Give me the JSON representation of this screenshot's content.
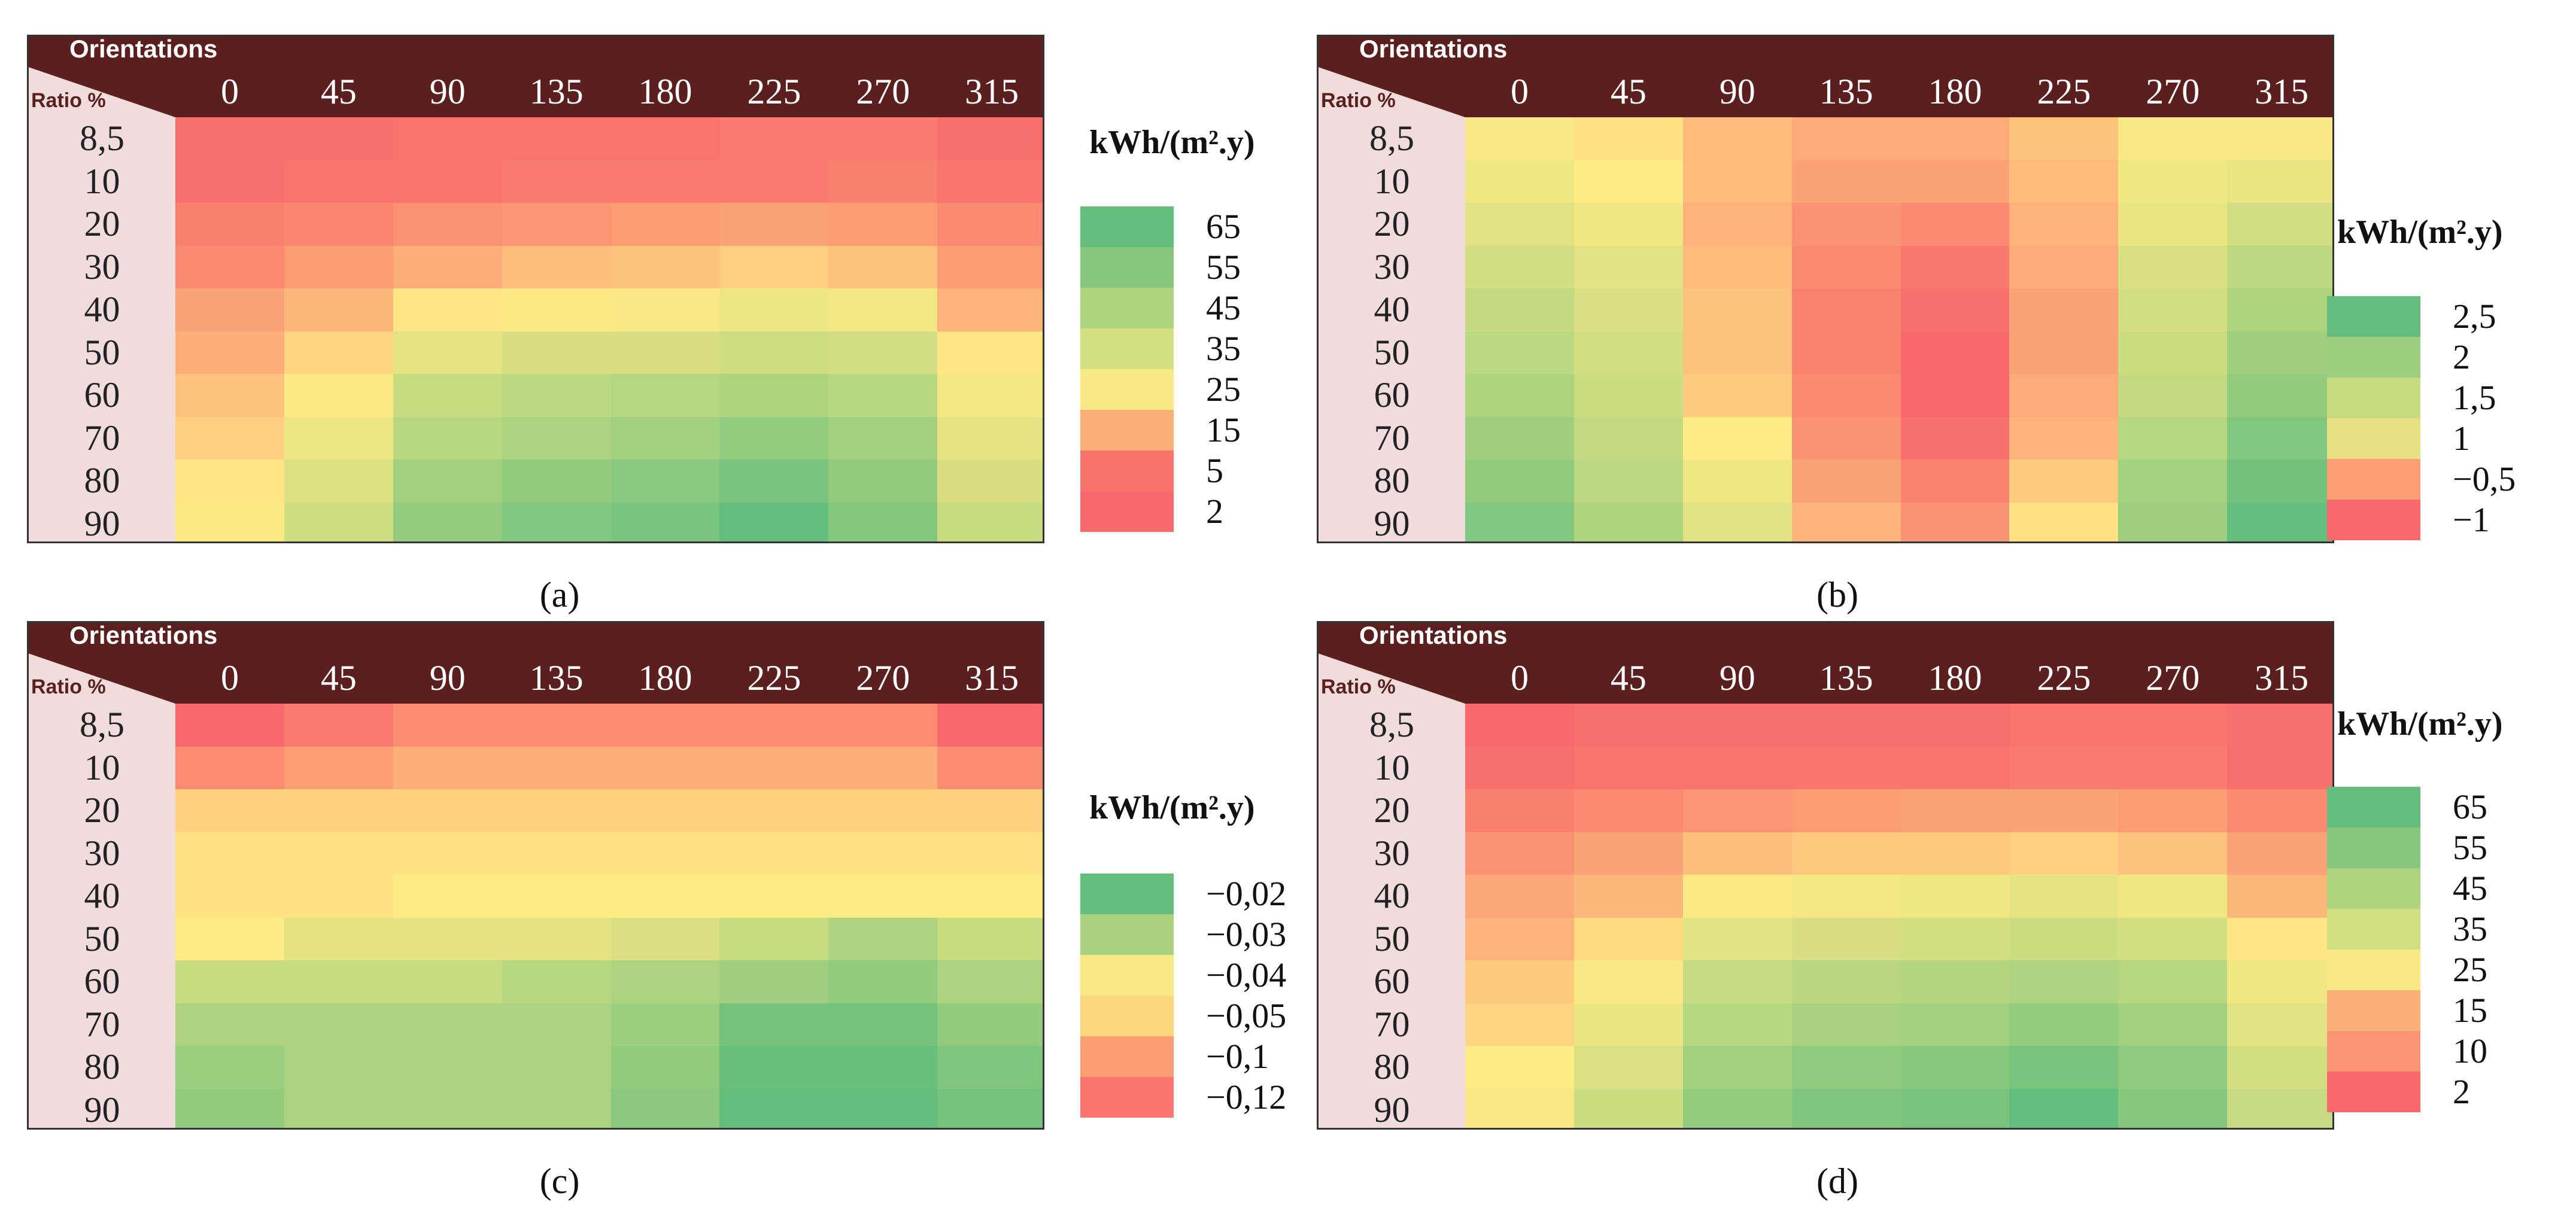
{
  "panels": [
    {
      "id": "a",
      "caption": "(a)",
      "orientations_label": "Orientations",
      "ratio_label": "Ratio %",
      "unit": "kWh/(m².y)",
      "columns": [
        "0",
        "45",
        "90",
        "135",
        "180",
        "225",
        "270",
        "315"
      ],
      "rows": [
        "8,5",
        "10",
        "20",
        "30",
        "40",
        "50",
        "60",
        "70",
        "80",
        "90"
      ],
      "legend": {
        "labels": [
          "65",
          "55",
          "45",
          "35",
          "25",
          "15",
          "5",
          "2"
        ],
        "colors": [
          "#63be7b",
          "#85c87d",
          "#acd47e",
          "#d4df81",
          "#f8e985",
          "#fcb079",
          "#f8736c",
          "#f8696b"
        ]
      },
      "matrix": [
        [
          3,
          3,
          4,
          4,
          4,
          5,
          5,
          3
        ],
        [
          3,
          4,
          4,
          5,
          5,
          5,
          6,
          4
        ],
        [
          6,
          7,
          9,
          10,
          11,
          12,
          11,
          8
        ],
        [
          8,
          11,
          14,
          17,
          18,
          20,
          18,
          11
        ],
        [
          12,
          16,
          24,
          26,
          27,
          30,
          28,
          15
        ],
        [
          14,
          21,
          32,
          36,
          36,
          38,
          37,
          24
        ],
        [
          18,
          26,
          40,
          43,
          45,
          47,
          44,
          28
        ],
        [
          20,
          30,
          44,
          48,
          50,
          54,
          50,
          32
        ],
        [
          24,
          34,
          50,
          55,
          57,
          61,
          55,
          36
        ],
        [
          26,
          38,
          54,
          59,
          61,
          67,
          58,
          40
        ]
      ],
      "scale": {
        "min": 2,
        "mid": 25,
        "max": 67
      }
    },
    {
      "id": "b",
      "caption": "(b)",
      "orientations_label": "Orientations",
      "ratio_label": "Ratio %",
      "unit": "kWh/(m².y)",
      "columns": [
        "0",
        "45",
        "90",
        "135",
        "180",
        "225",
        "270",
        "315"
      ],
      "rows": [
        "8,5",
        "10",
        "20",
        "30",
        "40",
        "50",
        "60",
        "70",
        "80",
        "90"
      ],
      "legend": {
        "labels": [
          "2,5",
          "2",
          "1,5",
          "1",
          "−0,5",
          "−1"
        ],
        "colors": [
          "#63be7b",
          "#9bcf7f",
          "#c6da80",
          "#e6e283",
          "#fb9d75",
          "#f8696b"
        ]
      },
      "matrix": [
        [
          0.7,
          0.5,
          0.0,
          -0.2,
          -0.2,
          0.1,
          0.7,
          0.7
        ],
        [
          0.8,
          0.6,
          0.0,
          -0.3,
          -0.3,
          0.0,
          0.8,
          0.9
        ],
        [
          1.0,
          0.8,
          -0.1,
          -0.5,
          -0.6,
          -0.1,
          0.9,
          1.2
        ],
        [
          1.2,
          1.0,
          0.0,
          -0.6,
          -0.8,
          -0.2,
          1.1,
          1.5
        ],
        [
          1.4,
          1.1,
          0.1,
          -0.7,
          -0.9,
          -0.3,
          1.2,
          1.7
        ],
        [
          1.5,
          1.2,
          0.1,
          -0.7,
          -1.0,
          -0.3,
          1.3,
          1.9
        ],
        [
          1.7,
          1.3,
          0.2,
          -0.6,
          -1.0,
          -0.2,
          1.4,
          2.1
        ],
        [
          1.9,
          1.4,
          0.6,
          -0.5,
          -0.9,
          -0.1,
          1.6,
          2.3
        ],
        [
          2.1,
          1.5,
          0.8,
          -0.3,
          -0.7,
          0.2,
          1.8,
          2.5
        ],
        [
          2.3,
          1.7,
          1.0,
          -0.1,
          -0.5,
          0.5,
          1.9,
          2.7
        ]
      ],
      "scale": {
        "min": -1,
        "mid": 0.6,
        "max": 2.7
      }
    },
    {
      "id": "c",
      "caption": "(c)",
      "orientations_label": "Orientations",
      "ratio_label": "Ratio %",
      "unit": "kWh/(m².y)",
      "columns": [
        "0",
        "45",
        "90",
        "135",
        "180",
        "225",
        "270",
        "315"
      ],
      "rows": [
        "8,5",
        "10",
        "20",
        "30",
        "40",
        "50",
        "60",
        "70",
        "80",
        "90"
      ],
      "legend": {
        "labels": [
          "−0,02",
          "−0,03",
          "−0,04",
          "−0,05",
          "−0,1",
          "−0,12"
        ],
        "colors": [
          "#63be7b",
          "#a9d27e",
          "#f6e885",
          "#fdd57f",
          "#fa9d75",
          "#f8766d"
        ]
      },
      "matrix": [
        [
          -0.12,
          -0.11,
          -0.1,
          -0.1,
          -0.1,
          -0.1,
          -0.1,
          -0.12
        ],
        [
          -0.1,
          -0.09,
          -0.08,
          -0.08,
          -0.08,
          -0.08,
          -0.08,
          -0.1
        ],
        [
          -0.06,
          -0.06,
          -0.06,
          -0.06,
          -0.06,
          -0.06,
          -0.06,
          -0.06
        ],
        [
          -0.05,
          -0.05,
          -0.05,
          -0.05,
          -0.05,
          -0.05,
          -0.05,
          -0.05
        ],
        [
          -0.05,
          -0.05,
          -0.045,
          -0.045,
          -0.045,
          -0.045,
          -0.045,
          -0.045
        ],
        [
          -0.045,
          -0.04,
          -0.04,
          -0.04,
          -0.038,
          -0.035,
          -0.03,
          -0.035
        ],
        [
          -0.035,
          -0.035,
          -0.035,
          -0.032,
          -0.03,
          -0.028,
          -0.025,
          -0.03
        ],
        [
          -0.03,
          -0.03,
          -0.03,
          -0.03,
          -0.027,
          -0.02,
          -0.02,
          -0.025
        ],
        [
          -0.027,
          -0.03,
          -0.03,
          -0.03,
          -0.025,
          -0.018,
          -0.018,
          -0.022
        ],
        [
          -0.025,
          -0.03,
          -0.03,
          -0.03,
          -0.024,
          -0.017,
          -0.017,
          -0.02
        ]
      ],
      "scale": {
        "min": -0.12,
        "mid": -0.045,
        "max": -0.017
      }
    },
    {
      "id": "d",
      "caption": "(d)",
      "orientations_label": "Orientations",
      "ratio_label": "Ratio %",
      "unit": "kWh/(m².y)",
      "columns": [
        "0",
        "45",
        "90",
        "135",
        "180",
        "225",
        "270",
        "315"
      ],
      "rows": [
        "8,5",
        "10",
        "20",
        "30",
        "40",
        "50",
        "60",
        "70",
        "80",
        "90"
      ],
      "legend": {
        "labels": [
          "65",
          "55",
          "45",
          "35",
          "25",
          "15",
          "10",
          "2"
        ],
        "colors": [
          "#63be7b",
          "#85c87d",
          "#acd47e",
          "#d4df81",
          "#f8e985",
          "#fcb079",
          "#fa9473",
          "#f8696b"
        ]
      },
      "matrix": [
        [
          2,
          3,
          3,
          3,
          3,
          4,
          4,
          3
        ],
        [
          3,
          4,
          4,
          4,
          4,
          5,
          5,
          3
        ],
        [
          6,
          8,
          10,
          11,
          12,
          12,
          11,
          8
        ],
        [
          9,
          12,
          17,
          19,
          19,
          20,
          18,
          12
        ],
        [
          13,
          16,
          26,
          28,
          29,
          32,
          29,
          16
        ],
        [
          15,
          22,
          33,
          36,
          37,
          39,
          37,
          24
        ],
        [
          19,
          27,
          41,
          44,
          46,
          48,
          45,
          29
        ],
        [
          21,
          31,
          45,
          49,
          51,
          55,
          51,
          33
        ],
        [
          25,
          35,
          51,
          56,
          58,
          62,
          56,
          37
        ],
        [
          27,
          39,
          55,
          60,
          62,
          68,
          59,
          41
        ]
      ],
      "scale": {
        "min": 2,
        "mid": 25,
        "max": 68
      }
    }
  ]
}
